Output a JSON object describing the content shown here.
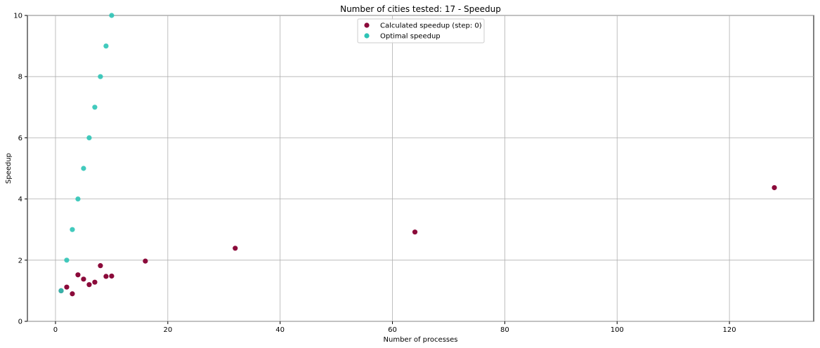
{
  "chart_data": {
    "type": "scatter",
    "title": "Number of cities tested: 17 - Speedup",
    "xlabel": "Number of processes",
    "ylabel": "Speedup",
    "xlim": [
      -5,
      135
    ],
    "ylim": [
      0,
      10
    ],
    "xticks": [
      0,
      20,
      40,
      60,
      80,
      100,
      120
    ],
    "yticks": [
      0,
      2,
      4,
      6,
      8,
      10
    ],
    "grid": true,
    "legend_position": "top-center",
    "series": [
      {
        "name": "Calculated speedup (step: 0)",
        "color": "#8b0a3a",
        "points": [
          {
            "x": 1,
            "y": 1.0
          },
          {
            "x": 2,
            "y": 1.12
          },
          {
            "x": 3,
            "y": 0.9
          },
          {
            "x": 4,
            "y": 1.52
          },
          {
            "x": 5,
            "y": 1.38
          },
          {
            "x": 6,
            "y": 1.2
          },
          {
            "x": 7,
            "y": 1.28
          },
          {
            "x": 8,
            "y": 1.82
          },
          {
            "x": 9,
            "y": 1.47
          },
          {
            "x": 10,
            "y": 1.48
          },
          {
            "x": 16,
            "y": 1.97
          },
          {
            "x": 32,
            "y": 2.39
          },
          {
            "x": 64,
            "y": 2.92
          },
          {
            "x": 128,
            "y": 4.37
          }
        ]
      },
      {
        "name": "Optimal speedup",
        "color": "#2ec4b6",
        "points": [
          {
            "x": 1,
            "y": 1
          },
          {
            "x": 2,
            "y": 2
          },
          {
            "x": 3,
            "y": 3
          },
          {
            "x": 4,
            "y": 4
          },
          {
            "x": 5,
            "y": 5
          },
          {
            "x": 6,
            "y": 6
          },
          {
            "x": 7,
            "y": 7
          },
          {
            "x": 8,
            "y": 8
          },
          {
            "x": 9,
            "y": 9
          },
          {
            "x": 10,
            "y": 10
          }
        ]
      }
    ]
  }
}
